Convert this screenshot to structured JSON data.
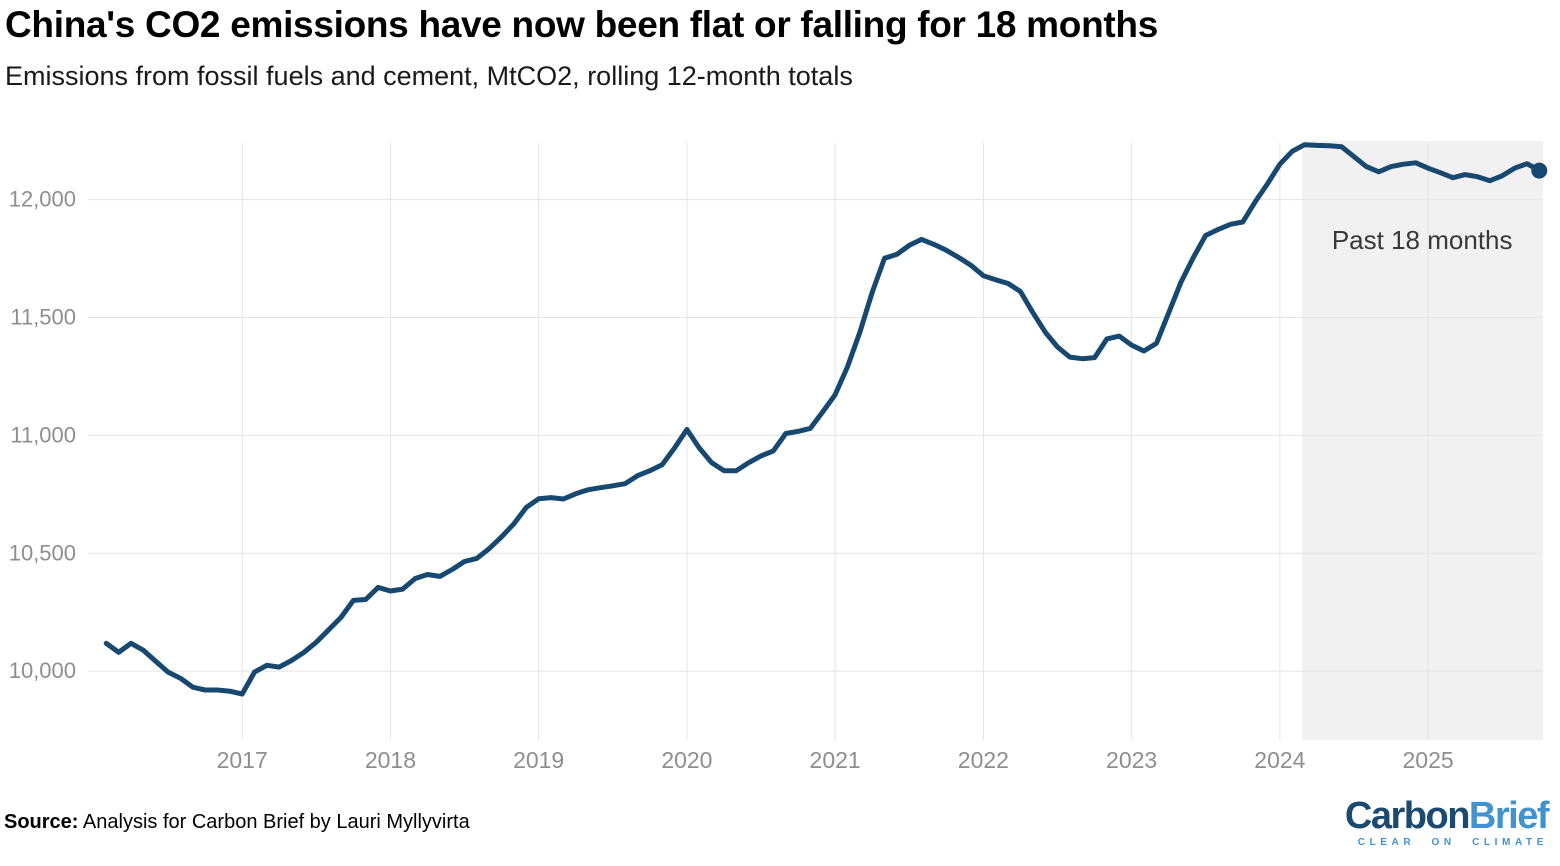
{
  "chart": {
    "title": "China's CO2 emissions have now been flat or falling for 18 months",
    "subtitle": "Emissions from fossil fuels and cement, MtCO2, rolling 12-month totals",
    "annotation": "Past 18 months",
    "source_label": "Source:",
    "source_text": " Analysis for Carbon Brief by Lauri Myllyvirta",
    "logo": {
      "part1": "Carbon",
      "part2": "Brief",
      "tagline": "CLEAR ON CLIMATE"
    }
  },
  "colors": {
    "line": "#17486F",
    "end_dot": "#17486F",
    "grid": "#e4e4e4",
    "axis_label": "#8e8e8e",
    "band": "#f1f1f1",
    "annotation": "#383838",
    "logo_dark": "#1B4A70",
    "logo_light": "#4193CF",
    "title": "#000000",
    "subtitle": "#1a1a1a"
  },
  "chart_data": {
    "type": "line",
    "title": "China's CO2 emissions have now been flat or falling for 18 months",
    "subtitle": "Emissions from fossil fuels and cement, MtCO2, rolling 12-month totals",
    "ylabel": "MtCO2",
    "xlim": [
      2015.96,
      2025.775
    ],
    "ylim": [
      9708,
      12240
    ],
    "yticks": [
      10000,
      10500,
      11000,
      11500,
      12000
    ],
    "xticks": [
      2017,
      2018,
      2019,
      2020,
      2021,
      2022,
      2023,
      2024,
      2025
    ],
    "grid": true,
    "legend": "none",
    "highlight_band": {
      "label": "Past 18 months",
      "start": 2024.15,
      "end": 2025.775,
      "label_pos": {
        "t": 2024.96,
        "v": 11790
      }
    },
    "series": [
      {
        "name": "Emissions from fossil fuels and cement (MtCO2, rolling 12-month totals)",
        "points": [
          [
            2016.083,
            10118
          ],
          [
            2016.167,
            10080
          ],
          [
            2016.25,
            10118
          ],
          [
            2016.333,
            10089
          ],
          [
            2016.417,
            10042
          ],
          [
            2016.5,
            9996
          ],
          [
            2016.583,
            9970
          ],
          [
            2016.667,
            9932
          ],
          [
            2016.75,
            9920
          ],
          [
            2016.833,
            9920
          ],
          [
            2016.917,
            9915
          ],
          [
            2017.0,
            9903
          ],
          [
            2017.083,
            9996
          ],
          [
            2017.167,
            10025
          ],
          [
            2017.25,
            10017
          ],
          [
            2017.333,
            10045
          ],
          [
            2017.417,
            10080
          ],
          [
            2017.5,
            10123
          ],
          [
            2017.583,
            10175
          ],
          [
            2017.667,
            10228
          ],
          [
            2017.75,
            10300
          ],
          [
            2017.833,
            10304
          ],
          [
            2017.917,
            10355
          ],
          [
            2018.0,
            10340
          ],
          [
            2018.083,
            10348
          ],
          [
            2018.167,
            10393
          ],
          [
            2018.25,
            10410
          ],
          [
            2018.333,
            10402
          ],
          [
            2018.417,
            10431
          ],
          [
            2018.5,
            10465
          ],
          [
            2018.583,
            10478
          ],
          [
            2018.667,
            10520
          ],
          [
            2018.75,
            10570
          ],
          [
            2018.833,
            10625
          ],
          [
            2018.917,
            10695
          ],
          [
            2019.0,
            10731
          ],
          [
            2019.083,
            10736
          ],
          [
            2019.167,
            10730
          ],
          [
            2019.25,
            10752
          ],
          [
            2019.333,
            10769
          ],
          [
            2019.417,
            10778
          ],
          [
            2019.5,
            10786
          ],
          [
            2019.583,
            10795
          ],
          [
            2019.667,
            10829
          ],
          [
            2019.75,
            10850
          ],
          [
            2019.833,
            10875
          ],
          [
            2019.917,
            10947
          ],
          [
            2020.0,
            11025
          ],
          [
            2020.083,
            10947
          ],
          [
            2020.167,
            10884
          ],
          [
            2020.25,
            10850
          ],
          [
            2020.333,
            10850
          ],
          [
            2020.417,
            10884
          ],
          [
            2020.5,
            10913
          ],
          [
            2020.583,
            10934
          ],
          [
            2020.667,
            11008
          ],
          [
            2020.75,
            11017
          ],
          [
            2020.833,
            11030
          ],
          [
            2020.917,
            11100
          ],
          [
            2021.0,
            11172
          ],
          [
            2021.083,
            11290
          ],
          [
            2021.167,
            11438
          ],
          [
            2021.25,
            11607
          ],
          [
            2021.333,
            11751
          ],
          [
            2021.417,
            11768
          ],
          [
            2021.5,
            11806
          ],
          [
            2021.583,
            11831
          ],
          [
            2021.667,
            11810
          ],
          [
            2021.75,
            11785
          ],
          [
            2021.833,
            11755
          ],
          [
            2021.917,
            11721
          ],
          [
            2022.0,
            11677
          ],
          [
            2022.083,
            11660
          ],
          [
            2022.167,
            11644
          ],
          [
            2022.25,
            11610
          ],
          [
            2022.333,
            11522
          ],
          [
            2022.417,
            11438
          ],
          [
            2022.5,
            11375
          ],
          [
            2022.583,
            11332
          ],
          [
            2022.667,
            11325
          ],
          [
            2022.75,
            11330
          ],
          [
            2022.833,
            11409
          ],
          [
            2022.917,
            11421
          ],
          [
            2023.0,
            11383
          ],
          [
            2023.083,
            11358
          ],
          [
            2023.167,
            11390
          ],
          [
            2023.25,
            11520
          ],
          [
            2023.333,
            11650
          ],
          [
            2023.417,
            11755
          ],
          [
            2023.5,
            11848
          ],
          [
            2023.583,
            11873
          ],
          [
            2023.667,
            11895
          ],
          [
            2023.75,
            11905
          ],
          [
            2023.833,
            11990
          ],
          [
            2023.917,
            12068
          ],
          [
            2024.0,
            12150
          ],
          [
            2024.083,
            12205
          ],
          [
            2024.167,
            12233
          ],
          [
            2024.25,
            12230
          ],
          [
            2024.333,
            12228
          ],
          [
            2024.417,
            12224
          ],
          [
            2024.5,
            12182
          ],
          [
            2024.583,
            12140
          ],
          [
            2024.667,
            12118
          ],
          [
            2024.75,
            12140
          ],
          [
            2024.833,
            12150
          ],
          [
            2024.917,
            12156
          ],
          [
            2025.0,
            12133
          ],
          [
            2025.083,
            12114
          ],
          [
            2025.167,
            12093
          ],
          [
            2025.25,
            12106
          ],
          [
            2025.333,
            12097
          ],
          [
            2025.417,
            12080
          ],
          [
            2025.5,
            12101
          ],
          [
            2025.583,
            12133
          ],
          [
            2025.667,
            12152
          ],
          [
            2025.75,
            12123
          ]
        ]
      }
    ]
  }
}
